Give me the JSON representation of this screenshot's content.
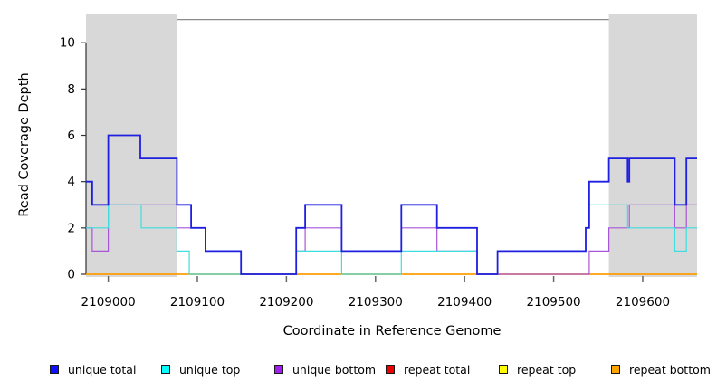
{
  "chart_data": {
    "type": "line",
    "subtype": "step",
    "title": "",
    "xlabel": "Coordinate in Reference Genome",
    "ylabel": "Read Coverage Depth",
    "x_domain": [
      2108975,
      2109661
    ],
    "ylim": [
      0,
      11
    ],
    "xticks": [
      2109000,
      2109100,
      2109200,
      2109300,
      2109400,
      2109500,
      2109600
    ],
    "xtick_labels": [
      "2109000",
      "2109100",
      "2109200",
      "2109300",
      "2109400",
      "2109500",
      "2109600"
    ],
    "yticks": [
      0,
      2,
      4,
      6,
      8,
      10
    ],
    "ytick_labels": [
      "0",
      "2",
      "4",
      "6",
      "8",
      "10"
    ],
    "grid": false,
    "shade_color": "#d8d8d8",
    "top_border_color": "#8c8c8c",
    "axis_color": "#333333",
    "shaded_regions": [
      {
        "from": 2108975,
        "to": 2109077
      },
      {
        "from": 2109562,
        "to": 2109661
      }
    ],
    "series": [
      {
        "name": "unique total",
        "key": "unique-total",
        "color": "#1f1fe0",
        "width": 1.8,
        "z": 6,
        "points": [
          [
            2108975,
            4
          ],
          [
            2108982,
            3
          ],
          [
            2109000,
            6
          ],
          [
            2109036,
            5
          ],
          [
            2109077,
            3
          ],
          [
            2109093,
            2
          ],
          [
            2109109,
            1
          ],
          [
            2109149,
            0
          ],
          [
            2109211,
            2
          ],
          [
            2109221,
            3
          ],
          [
            2109262,
            1
          ],
          [
            2109329,
            3
          ],
          [
            2109369,
            2
          ],
          [
            2109414,
            0
          ],
          [
            2109437,
            1
          ],
          [
            2109536,
            2
          ],
          [
            2109540,
            4
          ],
          [
            2109562,
            5
          ],
          [
            2109583,
            4
          ],
          [
            2109585,
            5
          ],
          [
            2109636,
            3
          ],
          [
            2109649,
            5
          ]
        ],
        "x_end": 2109661
      },
      {
        "name": "unique top",
        "key": "unique-top",
        "color": "#3fdede",
        "width": 1.2,
        "z": 5,
        "points": [
          [
            2108975,
            2
          ],
          [
            2109000,
            3
          ],
          [
            2109037,
            2
          ],
          [
            2109077,
            1
          ],
          [
            2109091,
            0
          ],
          [
            2109211,
            1
          ],
          [
            2109262,
            0
          ],
          [
            2109329,
            1
          ],
          [
            2109414,
            0
          ],
          [
            2109437,
            1
          ],
          [
            2109536,
            2
          ],
          [
            2109540,
            3
          ],
          [
            2109583,
            2
          ],
          [
            2109636,
            1
          ],
          [
            2109649,
            2
          ]
        ],
        "x_end": 2109661
      },
      {
        "name": "unique bottom",
        "key": "unique-bottom",
        "color": "#a855d8",
        "width": 1.2,
        "z": 4,
        "points": [
          [
            2108975,
            2
          ],
          [
            2108982,
            1
          ],
          [
            2109000,
            3
          ],
          [
            2109077,
            2
          ],
          [
            2109109,
            1
          ],
          [
            2109149,
            0
          ],
          [
            2109211,
            1
          ],
          [
            2109221,
            2
          ],
          [
            2109262,
            1
          ],
          [
            2109329,
            2
          ],
          [
            2109369,
            1
          ],
          [
            2109414,
            0
          ],
          [
            2109540,
            1
          ],
          [
            2109562,
            2
          ],
          [
            2109585,
            3
          ],
          [
            2109636,
            2
          ],
          [
            2109649,
            3
          ]
        ],
        "x_end": 2109661
      },
      {
        "name": "repeat total",
        "key": "repeat-total",
        "color": "#e00000",
        "width": 1.2,
        "z": 1,
        "points": [
          [
            2108975,
            0
          ]
        ],
        "x_end": 2109661
      },
      {
        "name": "repeat top",
        "key": "repeat-top",
        "color": "#ffff00",
        "width": 1.2,
        "z": 2,
        "points": [
          [
            2108975,
            0
          ]
        ],
        "x_end": 2109661
      },
      {
        "name": "repeat bottom",
        "key": "repeat-bottom",
        "color": "#ff9d00",
        "width": 1.6,
        "z": 3,
        "points": [
          [
            2108975,
            0
          ]
        ],
        "x_end": 2109661
      }
    ]
  },
  "legend": {
    "items": [
      {
        "key": "unique-total",
        "label": "unique total",
        "color": "#0f0fff"
      },
      {
        "key": "unique-top",
        "label": "unique top",
        "color": "#00ffff"
      },
      {
        "key": "unique-bottom",
        "label": "unique bottom",
        "color": "#a020f0"
      },
      {
        "key": "repeat-total",
        "label": "repeat total",
        "color": "#ee0000"
      },
      {
        "key": "repeat-top",
        "label": "repeat top",
        "color": "#ffff00"
      },
      {
        "key": "repeat-bottom",
        "label": "repeat bottom",
        "color": "#ffa500"
      }
    ]
  }
}
